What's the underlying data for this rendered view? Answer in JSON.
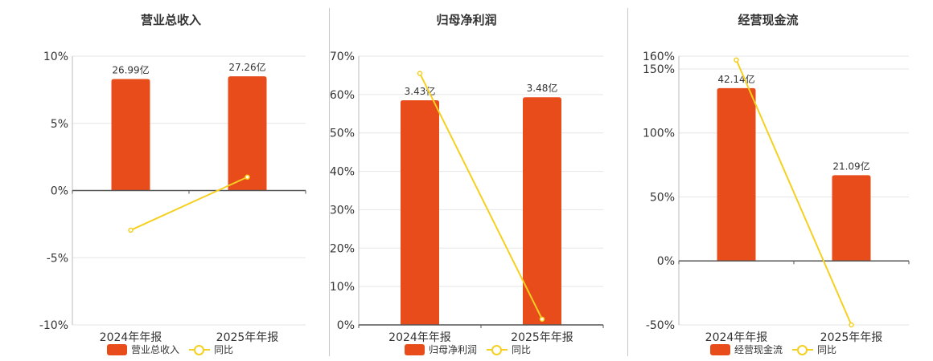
{
  "colors": {
    "bar": "#e84c1b",
    "line": "#f5d020"
  },
  "legend_line_label": "同比",
  "chart_data": [
    {
      "type": "bar",
      "title": "营业总收入",
      "categories": [
        "2024年年报",
        "2025年年报"
      ],
      "bar_labels": [
        "26.99亿",
        "27.26亿"
      ],
      "bar_axis_pct": [
        8.3,
        8.5
      ],
      "yoy": [
        -2.95,
        1.0
      ],
      "ylim": [
        -10,
        10
      ],
      "yticks": [
        10,
        5,
        0,
        -5,
        -10
      ],
      "ytick_labels": [
        "10%",
        "5%",
        "0%",
        "-5%",
        "-10%"
      ],
      "series": [
        {
          "name": "营业总收入"
        },
        {
          "name": "同比"
        }
      ]
    },
    {
      "type": "bar",
      "title": "归母净利润",
      "categories": [
        "2024年年报",
        "2025年年报"
      ],
      "bar_labels": [
        "3.43亿",
        "3.48亿"
      ],
      "bar_axis_pct": [
        58.5,
        59.3
      ],
      "yoy": [
        65.5,
        1.5
      ],
      "ylim": [
        0,
        70
      ],
      "yticks": [
        70,
        60,
        50,
        40,
        30,
        20,
        10,
        0
      ],
      "ytick_labels": [
        "70%",
        "60%",
        "50%",
        "40%",
        "30%",
        "20%",
        "10%",
        "0%"
      ],
      "series": [
        {
          "name": "归母净利润"
        },
        {
          "name": "同比"
        }
      ]
    },
    {
      "type": "bar",
      "title": "经营现金流",
      "categories": [
        "2024年年报",
        "2025年年报"
      ],
      "bar_labels": [
        "42.14亿",
        "21.09亿"
      ],
      "bar_axis_pct": [
        135,
        67
      ],
      "yoy": [
        157,
        -50
      ],
      "ylim": [
        -50,
        160
      ],
      "yticks": [
        160,
        150,
        100,
        50,
        0,
        -50
      ],
      "ytick_labels": [
        "160%",
        "150%",
        "100%",
        "50%",
        "0%",
        "-50%"
      ],
      "series": [
        {
          "name": "经营现金流"
        },
        {
          "name": "同比"
        }
      ]
    }
  ]
}
